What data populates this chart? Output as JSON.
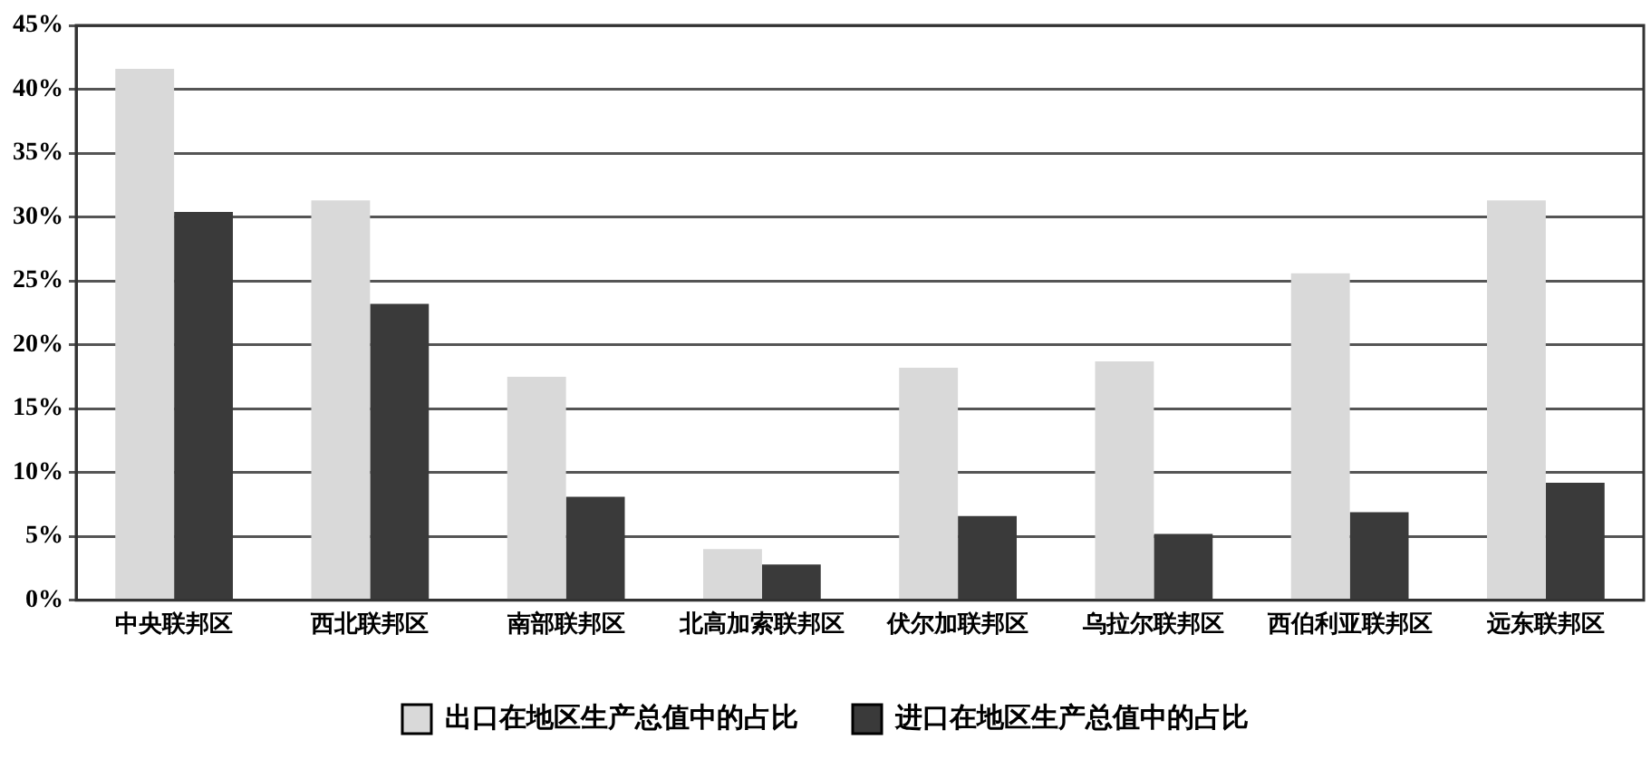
{
  "chart_data": {
    "type": "bar",
    "categories": [
      "中央联邦区",
      "西北联邦区",
      "南部联邦区",
      "北高加索联邦区",
      "伏尔加联邦区",
      "乌拉尔联邦区",
      "西伯利亚联邦区",
      "远东联邦区"
    ],
    "series": [
      {
        "name": "出口在地区生产总值中的占比",
        "color": "#d9d9d9",
        "values": [
          41.6,
          31.3,
          17.5,
          4.0,
          18.2,
          18.7,
          25.6,
          31.3
        ]
      },
      {
        "name": "进口在地区生产总值中的占比",
        "color": "#3a3a3a",
        "values": [
          30.4,
          23.2,
          8.1,
          2.8,
          6.6,
          5.2,
          6.9,
          9.2
        ]
      }
    ],
    "ylim": [
      0,
      45
    ],
    "yticks": [
      {
        "value": 0,
        "label": "0%"
      },
      {
        "value": 5,
        "label": "5%"
      },
      {
        "value": 10,
        "label": "10%"
      },
      {
        "value": 15,
        "label": "15%"
      },
      {
        "value": 20,
        "label": "20%"
      },
      {
        "value": 25,
        "label": "25%"
      },
      {
        "value": 30,
        "label": "30%"
      },
      {
        "value": 35,
        "label": "35%"
      },
      {
        "value": 40,
        "label": "40%"
      },
      {
        "value": 45,
        "label": "45%"
      }
    ],
    "grid": "y",
    "legend": "bottom"
  }
}
